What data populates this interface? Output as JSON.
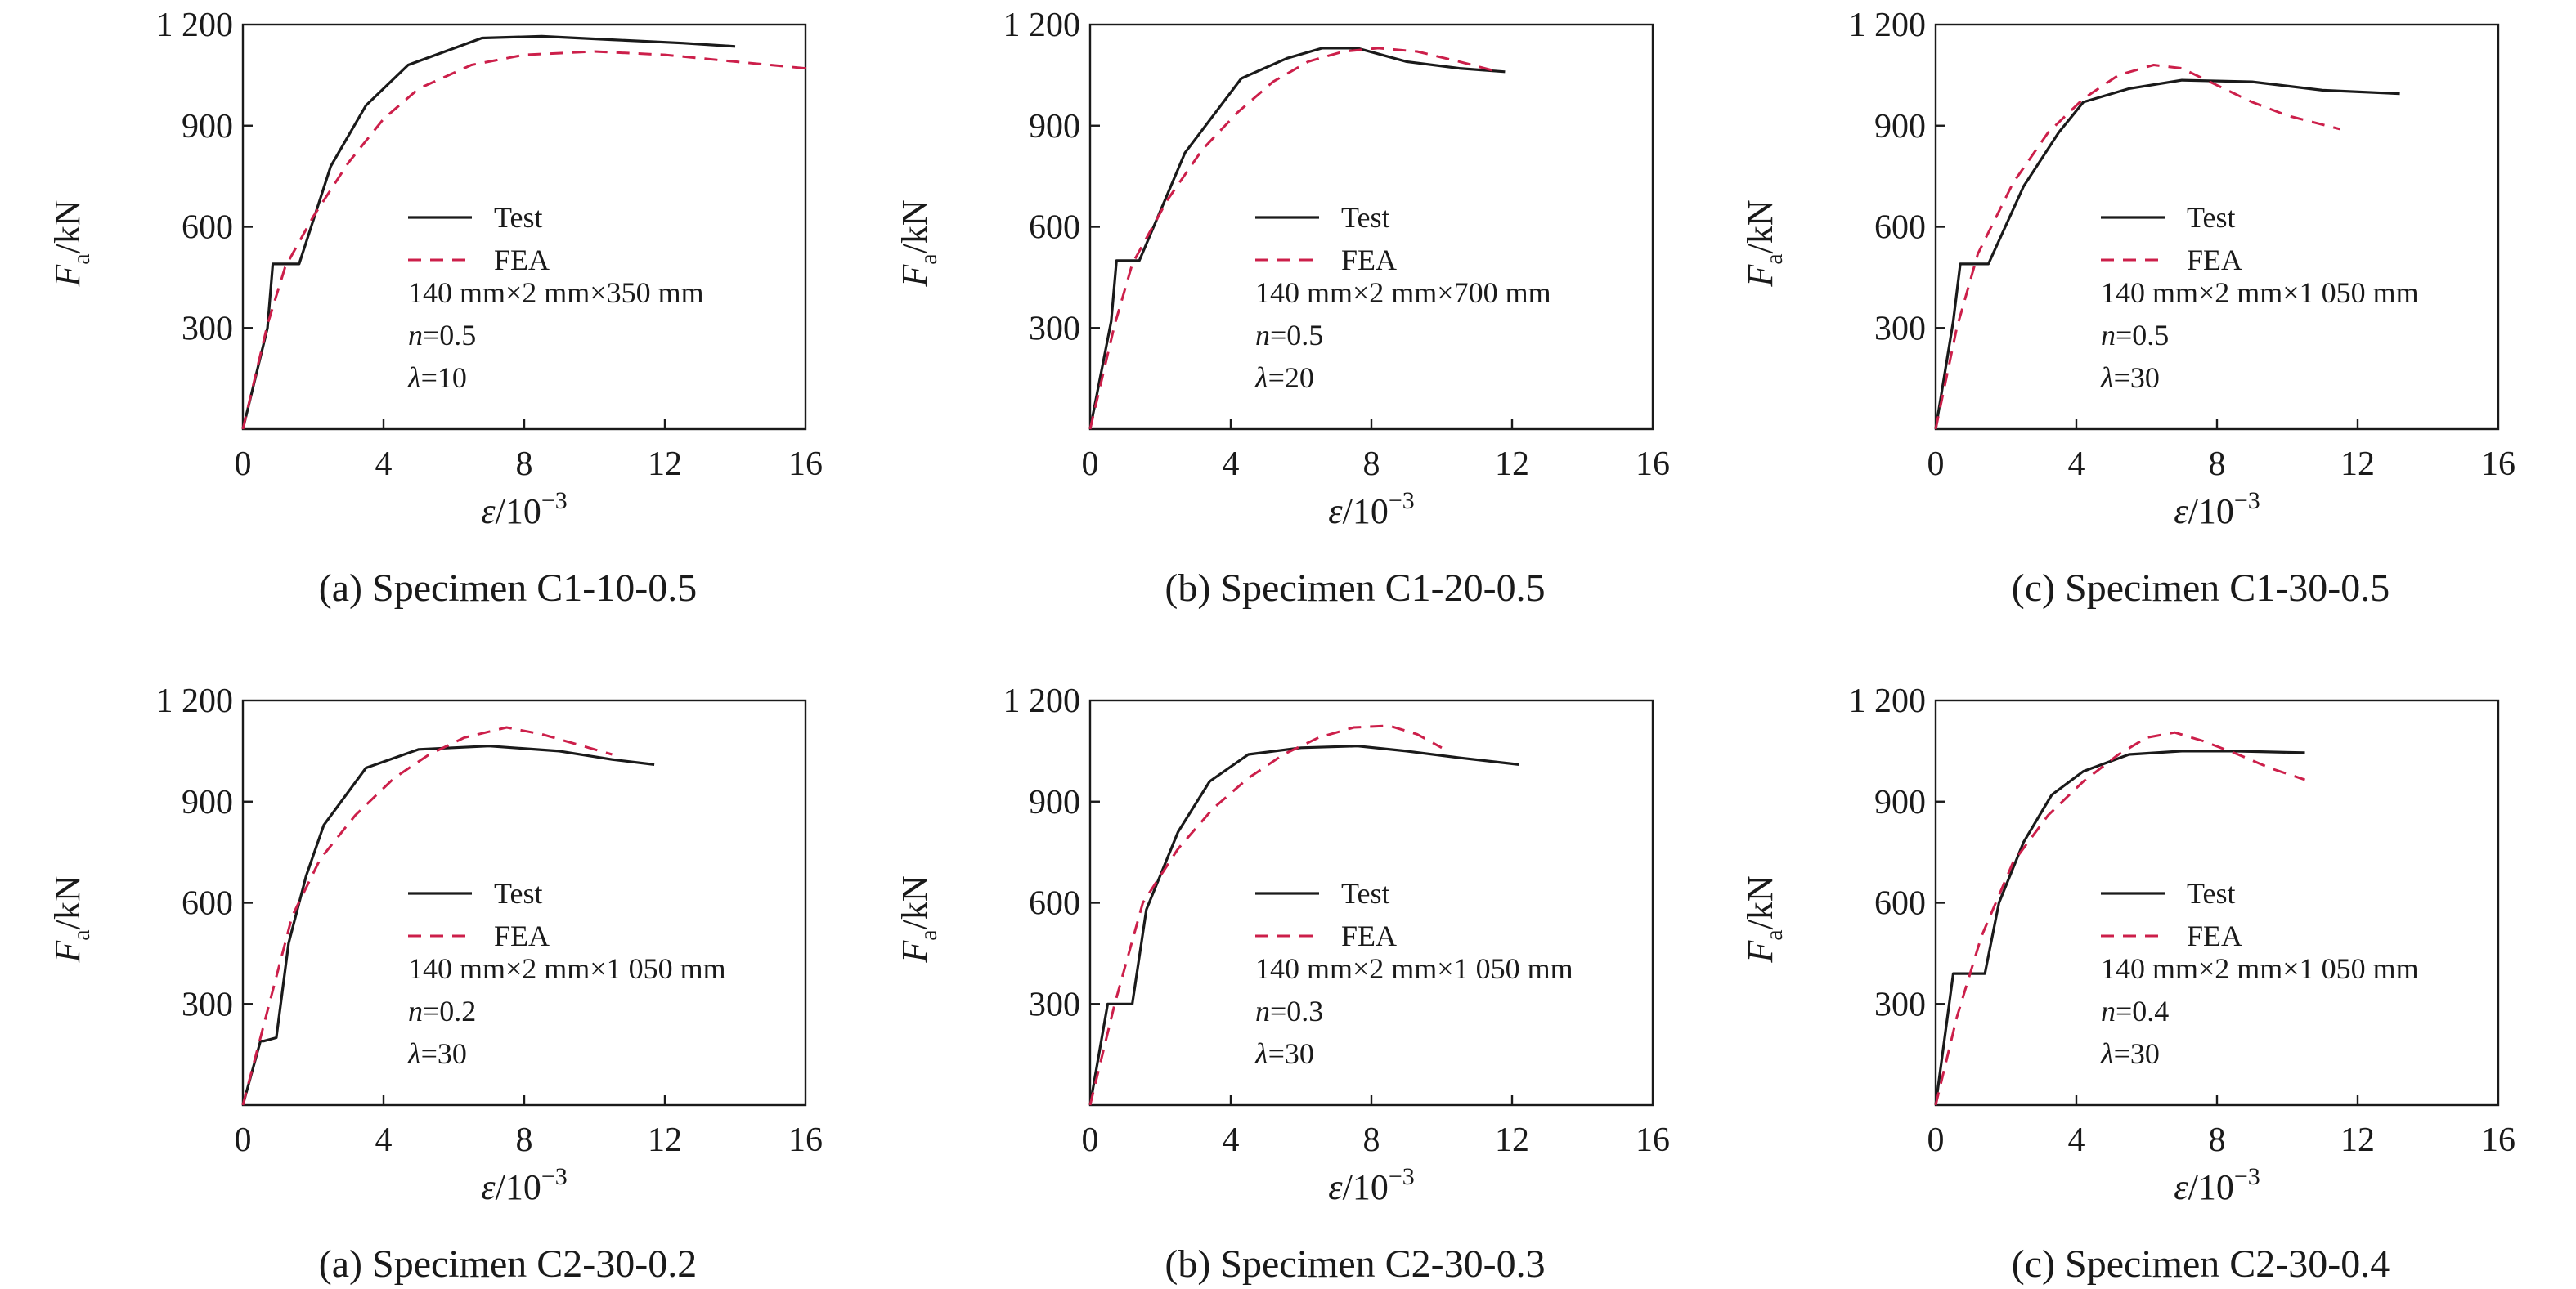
{
  "colors": {
    "test": "#1a1a1a",
    "fea": "#cc1f4a",
    "axis": "#1a1a1a"
  },
  "chart_data": [
    {
      "type": "line",
      "caption": "(a) Specimen C1-10-0.5",
      "xlabel": "ε/10⁻³",
      "ylabel": "Fa/kN",
      "xlim": [
        0,
        16
      ],
      "ylim": [
        0,
        1200
      ],
      "xticks": [
        0,
        4,
        8,
        12,
        16
      ],
      "yticks": [
        300,
        600,
        900,
        1200
      ],
      "ytick_labels": [
        "300",
        "600",
        "900",
        "1 200"
      ],
      "legend": [
        "Test",
        "FEA"
      ],
      "specimen_size": "140 mm×2 mm×350 mm",
      "n_label": "n=0.5",
      "lambda_label": "λ=10",
      "series": [
        {
          "name": "Test",
          "style": "solid",
          "x": [
            0,
            0.7,
            0.85,
            1.0,
            1.6,
            2.5,
            3.5,
            4.7,
            6.8,
            8.5,
            10.5,
            12.5,
            14.0
          ],
          "y": [
            0,
            300,
            490,
            490,
            490,
            780,
            960,
            1080,
            1160,
            1165,
            1155,
            1145,
            1135
          ]
        },
        {
          "name": "FEA",
          "style": "dashed",
          "x": [
            0,
            0.7,
            1.2,
            2.0,
            3.0,
            4.0,
            5.0,
            6.5,
            8.0,
            10.0,
            12.0,
            14.0,
            16.0
          ],
          "y": [
            0,
            310,
            480,
            630,
            790,
            920,
            1010,
            1080,
            1110,
            1120,
            1110,
            1090,
            1070
          ]
        }
      ]
    },
    {
      "type": "line",
      "caption": "(b) Specimen C1-20-0.5",
      "xlabel": "ε/10⁻³",
      "ylabel": "Fa/kN",
      "xlim": [
        0,
        16
      ],
      "ylim": [
        0,
        1200
      ],
      "xticks": [
        0,
        4,
        8,
        12,
        16
      ],
      "yticks": [
        300,
        600,
        900,
        1200
      ],
      "ytick_labels": [
        "300",
        "600",
        "900",
        "1 200"
      ],
      "legend": [
        "Test",
        "FEA"
      ],
      "specimen_size": "140 mm×2 mm×700 mm",
      "n_label": "n=0.5",
      "lambda_label": "λ=20",
      "series": [
        {
          "name": "Test",
          "style": "solid",
          "x": [
            0,
            0.6,
            0.75,
            0.9,
            1.4,
            2.7,
            4.3,
            5.6,
            6.6,
            7.6,
            9.0,
            10.5,
            11.8
          ],
          "y": [
            0,
            320,
            500,
            500,
            500,
            820,
            1040,
            1100,
            1130,
            1130,
            1090,
            1070,
            1060
          ]
        },
        {
          "name": "FEA",
          "style": "dashed",
          "x": [
            0,
            0.7,
            1.2,
            2.2,
            3.2,
            4.2,
            5.2,
            6.2,
            7.2,
            8.2,
            9.3,
            10.5,
            11.6
          ],
          "y": [
            0,
            310,
            490,
            680,
            830,
            940,
            1030,
            1090,
            1120,
            1130,
            1120,
            1090,
            1060
          ]
        }
      ]
    },
    {
      "type": "line",
      "caption": "(c) Specimen C1-30-0.5",
      "xlabel": "ε/10⁻³",
      "ylabel": "Fa/kN",
      "xlim": [
        0,
        16
      ],
      "ylim": [
        0,
        1200
      ],
      "xticks": [
        0,
        4,
        8,
        12,
        16
      ],
      "yticks": [
        300,
        600,
        900,
        1200
      ],
      "ytick_labels": [
        "300",
        "600",
        "900",
        "1 200"
      ],
      "legend": [
        "Test",
        "FEA"
      ],
      "specimen_size": "140 mm×2 mm×1 050 mm",
      "n_label": "n=0.5",
      "lambda_label": "λ=30",
      "series": [
        {
          "name": "Test",
          "style": "solid",
          "x": [
            0,
            0.5,
            0.7,
            0.85,
            1.5,
            2.5,
            3.5,
            4.2,
            5.5,
            7.0,
            9.0,
            11.0,
            13.2
          ],
          "y": [
            0,
            320,
            490,
            490,
            490,
            720,
            880,
            970,
            1010,
            1035,
            1030,
            1005,
            995
          ]
        },
        {
          "name": "FEA",
          "style": "dashed",
          "x": [
            0,
            0.6,
            1.2,
            2.2,
            3.2,
            4.2,
            5.2,
            6.2,
            7.0,
            8.0,
            9.0,
            10.0,
            11.5
          ],
          "y": [
            0,
            300,
            520,
            730,
            880,
            980,
            1050,
            1080,
            1070,
            1020,
            970,
            930,
            890
          ]
        }
      ]
    },
    {
      "type": "line",
      "caption": "(a) Specimen C2-30-0.2",
      "xlabel": "ε/10⁻³",
      "ylabel": "Fa/kN",
      "xlim": [
        0,
        16
      ],
      "ylim": [
        0,
        1200
      ],
      "xticks": [
        0,
        4,
        8,
        12,
        16
      ],
      "yticks": [
        300,
        600,
        900,
        1200
      ],
      "ytick_labels": [
        "300",
        "600",
        "900",
        "1 200"
      ],
      "legend": [
        "Test",
        "FEA"
      ],
      "specimen_size": "140 mm×2 mm×1 050 mm",
      "n_label": "n=0.2",
      "lambda_label": "λ=30",
      "series": [
        {
          "name": "Test",
          "style": "solid",
          "x": [
            0,
            0.5,
            0.6,
            0.95,
            1.3,
            1.8,
            2.3,
            3.5,
            5.0,
            7.0,
            9.0,
            10.5,
            11.7
          ],
          "y": [
            0,
            190,
            190,
            200,
            480,
            680,
            830,
            1000,
            1055,
            1065,
            1050,
            1025,
            1010
          ]
        },
        {
          "name": "FEA",
          "style": "dashed",
          "x": [
            0,
            0.7,
            1.4,
            2.2,
            3.2,
            4.3,
            5.3,
            6.3,
            7.5,
            8.5,
            9.5,
            10.5
          ],
          "y": [
            0,
            280,
            560,
            730,
            860,
            970,
            1040,
            1090,
            1120,
            1100,
            1070,
            1040
          ]
        }
      ]
    },
    {
      "type": "line",
      "caption": "(b) Specimen C2-30-0.3",
      "xlabel": "ε/10⁻³",
      "ylabel": "Fa/kN",
      "xlim": [
        0,
        16
      ],
      "ylim": [
        0,
        1200
      ],
      "xticks": [
        0,
        4,
        8,
        12,
        16
      ],
      "yticks": [
        300,
        600,
        900,
        1200
      ],
      "ytick_labels": [
        "300",
        "600",
        "900",
        "1 200"
      ],
      "legend": [
        "Test",
        "FEA"
      ],
      "specimen_size": "140 mm×2 mm×1 050 mm",
      "n_label": "n=0.3",
      "lambda_label": "λ=30",
      "series": [
        {
          "name": "Test",
          "style": "solid",
          "x": [
            0,
            0.5,
            0.6,
            1.2,
            1.6,
            2.5,
            3.4,
            4.5,
            6.0,
            7.6,
            9.0,
            10.5,
            12.2
          ],
          "y": [
            0,
            300,
            300,
            300,
            580,
            810,
            960,
            1040,
            1060,
            1065,
            1050,
            1030,
            1010
          ]
        },
        {
          "name": "FEA",
          "style": "dashed",
          "x": [
            0,
            0.7,
            1.5,
            2.5,
            3.5,
            4.5,
            5.5,
            6.5,
            7.5,
            8.5,
            9.3,
            10.0
          ],
          "y": [
            0,
            300,
            600,
            760,
            880,
            970,
            1040,
            1090,
            1120,
            1125,
            1100,
            1060
          ]
        }
      ]
    },
    {
      "type": "line",
      "caption": "(c) Specimen C2-30-0.4",
      "xlabel": "ε/10⁻³",
      "ylabel": "Fa/kN",
      "xlim": [
        0,
        16
      ],
      "ylim": [
        0,
        1200
      ],
      "xticks": [
        0,
        4,
        8,
        12,
        16
      ],
      "yticks": [
        300,
        600,
        900,
        1200
      ],
      "ytick_labels": [
        "300",
        "600",
        "900",
        "1 200"
      ],
      "legend": [
        "Test",
        "FEA"
      ],
      "specimen_size": "140 mm×2 mm×1 050 mm",
      "n_label": "n=0.4",
      "lambda_label": "λ=30",
      "series": [
        {
          "name": "Test",
          "style": "solid",
          "x": [
            0,
            0.5,
            0.6,
            1.4,
            1.8,
            2.5,
            3.3,
            4.2,
            5.5,
            7.0,
            8.5,
            10.5
          ],
          "y": [
            0,
            390,
            390,
            390,
            600,
            780,
            920,
            990,
            1040,
            1050,
            1050,
            1045
          ]
        },
        {
          "name": "FEA",
          "style": "dashed",
          "x": [
            0,
            0.6,
            1.3,
            2.2,
            3.2,
            4.2,
            5.2,
            6.0,
            6.8,
            7.6,
            8.6,
            9.5,
            10.5
          ],
          "y": [
            0,
            260,
            500,
            720,
            860,
            960,
            1040,
            1090,
            1105,
            1080,
            1040,
            1000,
            965
          ]
        }
      ]
    }
  ]
}
